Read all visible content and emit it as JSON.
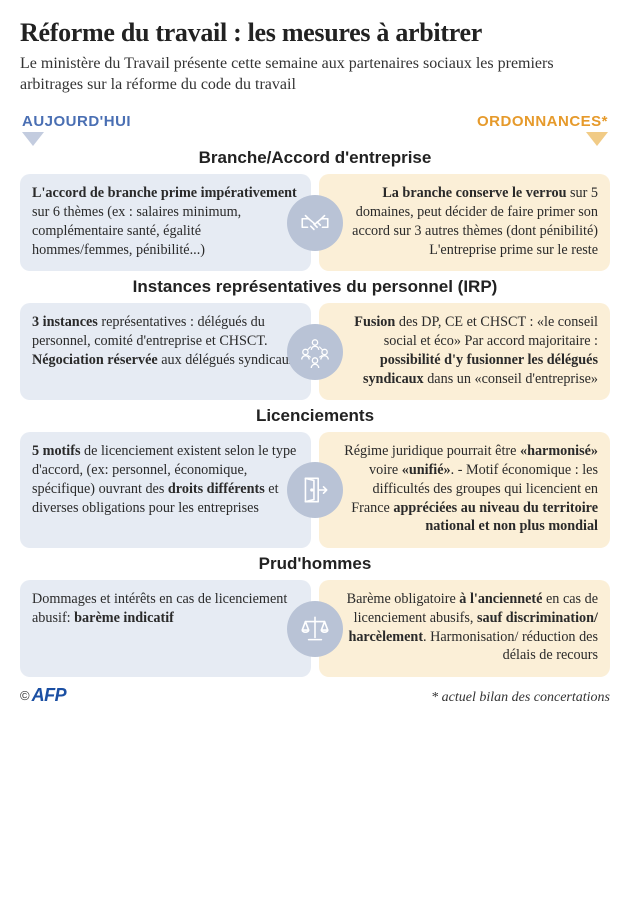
{
  "title": "Réforme du travail : les mesures à arbitrer",
  "subtitle": "Le ministère du Travail présente cette semaine aux partenaires sociaux les premiers arbitrages sur la réforme du code du travail",
  "columns": {
    "left": {
      "label": "AUJOURD'HUI",
      "color": "#4a6fb3",
      "arrow_color": "#c3ccdf",
      "card_bg": "#e6ebf3"
    },
    "right": {
      "label": "ORDONNANCES*",
      "color": "#e69a2b",
      "arrow_color": "#f1cb86",
      "card_bg": "#fbefd7"
    }
  },
  "icon_circle_bg": "#b9c3d6",
  "icon_stroke": "#ffffff",
  "sections": [
    {
      "title": "Branche/Accord d'entreprise",
      "icon": "handshake",
      "left_html": "<b>L'accord de branche prime impérativement</b> sur 6 thèmes (ex : salaires minimum, complémentaire santé, égalité hommes/femmes, pénibilité...)",
      "right_html": "<b>La branche conserve le verrou</b> sur 5 domaines, peut décider de faire primer son accord sur 3 autres thèmes (dont pénibilité) L'entreprise prime sur le reste"
    },
    {
      "title": "Instances représentatives du personnel (IRP)",
      "icon": "people",
      "left_html": "<b>3 instances</b> représentatives : délégués du personnel, comité d'entreprise et CHSCT. <b>Négociation réservée</b> aux délégués syndicaux",
      "right_html": "<b>Fusion</b> des DP, CE et CHSCT : «le conseil social et éco» Par accord majoritaire : <b>possibilité d'y fusionner les délégués syndicaux</b> dans un «conseil d'entreprise»"
    },
    {
      "title": "Licenciements",
      "icon": "door",
      "left_html": "<b>5 motifs</b> de licenciement existent selon le type d'accord, (ex: personnel, économique, spécifique) ouvrant des <b>droits différents</b> et diverses obligations pour les entreprises",
      "right_html": "Régime juridique pourrait être <b>«harmonisé»</b> voire <b>«unifié»</b>. - Motif économique : les difficultés des groupes qui licencient en France <b>appréciées au niveau du territoire national et non plus mondial</b>"
    },
    {
      "title": "Prud'hommes",
      "icon": "scales",
      "left_html": "Dommages et intérêts en cas de licenciement abusif: <b>barème indicatif</b>",
      "right_html": "Barème obligatoire <b>à l'ancienneté</b> en cas de licenciement abusifs, <b>sauf discrimination/ harcèlement</b>. Harmonisation/ réduction des délais de recours"
    }
  ],
  "credit_symbol": "©",
  "credit_brand": "AFP",
  "footnote": "* actuel bilan des concertations"
}
